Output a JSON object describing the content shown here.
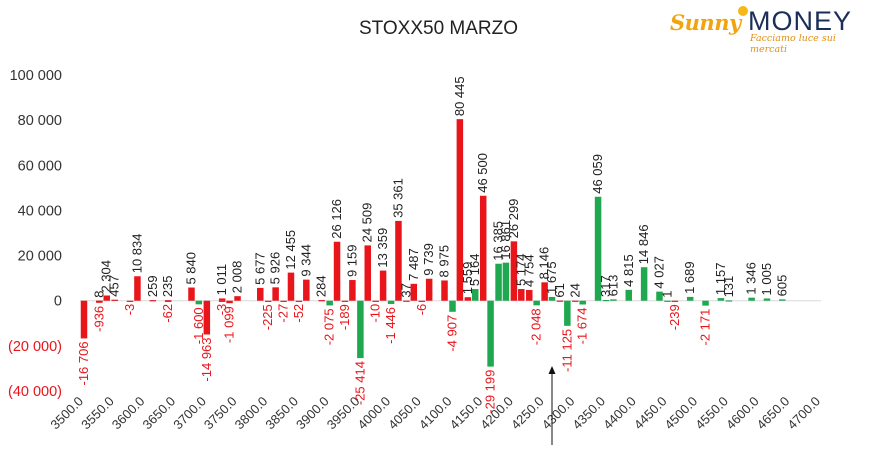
{
  "logo": {
    "brand_left": "Sunny",
    "brand_right": "MONEY",
    "tagline": "Facciamo luce sui mercati"
  },
  "colors": {
    "calls": "#e8151b",
    "puts": "#1fa84f",
    "call_labels": "#222222",
    "put_labels": "#e8151b",
    "axis_text": "#333333"
  },
  "chart_data": {
    "type": "bar",
    "title": "STOXX50 MARZO",
    "ylim": [
      -40000,
      100000
    ],
    "yticks": [
      -40000,
      -20000,
      0,
      20000,
      40000,
      60000,
      80000,
      100000
    ],
    "ytick_labels": [
      "(40 000)",
      "(20 000)",
      "0",
      "20 000",
      "40 000",
      "60 000",
      "80 000",
      "100 000"
    ],
    "xlim": [
      3500,
      4700
    ],
    "xticks": [
      3500,
      3550,
      3600,
      3650,
      3700,
      3750,
      3800,
      3850,
      3900,
      3950,
      4000,
      4050,
      4100,
      4150,
      4200,
      4250,
      4300,
      4350,
      4400,
      4450,
      4500,
      4550,
      4600,
      4650,
      4700
    ],
    "xtick_labels": [
      "3500.0",
      "3550.0",
      "3600.0",
      "3650.0",
      "3700.0",
      "3750.0",
      "3800.0",
      "3850.0",
      "3900.0",
      "3950.0",
      "4000.0",
      "4050.0",
      "4100.0",
      "4150.0",
      "4200.0",
      "4250.0",
      "4300.0",
      "4350.0",
      "4400.0",
      "4450.0",
      "4500.0",
      "4550.0",
      "4600.0",
      "4650.0",
      "4700.0"
    ],
    "bars": [
      {
        "strike": 3500,
        "color": "red",
        "value": -16706,
        "label": "-16 706"
      },
      {
        "strike": 3525,
        "color": "red",
        "value": -936,
        "label": "-936"
      },
      {
        "strike": 3525,
        "color": "red",
        "value": 8,
        "label": "8"
      },
      {
        "strike": 3537,
        "color": "red",
        "value": 2304,
        "label": "2 304"
      },
      {
        "strike": 3550,
        "color": "red",
        "value": 457,
        "label": "457"
      },
      {
        "strike": 3575,
        "color": "red",
        "value": -3,
        "label": "-3"
      },
      {
        "strike": 3587,
        "color": "red",
        "value": 10834,
        "label": "10 834"
      },
      {
        "strike": 3612,
        "color": "red",
        "value": 259,
        "label": "259"
      },
      {
        "strike": 3637,
        "color": "red",
        "value": -62,
        "label": "-62"
      },
      {
        "strike": 3637,
        "color": "red",
        "value": 235,
        "label": "235"
      },
      {
        "strike": 3675,
        "color": "red",
        "value": 5840,
        "label": "5 840"
      },
      {
        "strike": 3687,
        "color": "green",
        "value": -1600,
        "label": "-1 600"
      },
      {
        "strike": 3700,
        "color": "red",
        "value": -14963,
        "label": "-14 963"
      },
      {
        "strike": 3725,
        "color": "red",
        "value": -3,
        "label": "-3"
      },
      {
        "strike": 3725,
        "color": "red",
        "value": 1011,
        "label": "1 011"
      },
      {
        "strike": 3737,
        "color": "red",
        "value": -1099,
        "label": "-1 099"
      },
      {
        "strike": 3750,
        "color": "red",
        "value": 2008,
        "label": "2 008"
      },
      {
        "strike": 3787,
        "color": "red",
        "value": 5677,
        "label": "5 677"
      },
      {
        "strike": 3800,
        "color": "red",
        "value": -225,
        "label": "-225"
      },
      {
        "strike": 3812,
        "color": "red",
        "value": 5926,
        "label": "5 926"
      },
      {
        "strike": 3825,
        "color": "red",
        "value": -27,
        "label": "-27"
      },
      {
        "strike": 3837,
        "color": "red",
        "value": 12455,
        "label": "12 455"
      },
      {
        "strike": 3850,
        "color": "red",
        "value": -52,
        "label": "-52"
      },
      {
        "strike": 3862,
        "color": "red",
        "value": 9344,
        "label": "9 344"
      },
      {
        "strike": 3887,
        "color": "red",
        "value": 284,
        "label": "284"
      },
      {
        "strike": 3900,
        "color": "green",
        "value": -2075,
        "label": "-2 075"
      },
      {
        "strike": 3912,
        "color": "red",
        "value": 26126,
        "label": "26 126"
      },
      {
        "strike": 3925,
        "color": "red",
        "value": -189,
        "label": "-189"
      },
      {
        "strike": 3937,
        "color": "red",
        "value": 9159,
        "label": "9 159"
      },
      {
        "strike": 3950,
        "color": "green",
        "value": -25414,
        "label": "-25 414"
      },
      {
        "strike": 3962,
        "color": "red",
        "value": 24509,
        "label": "24 509"
      },
      {
        "strike": 3975,
        "color": "red",
        "value": -10,
        "label": "-10"
      },
      {
        "strike": 3987,
        "color": "red",
        "value": 13359,
        "label": "13 359"
      },
      {
        "strike": 4000,
        "color": "green",
        "value": -1446,
        "label": "-1 446"
      },
      {
        "strike": 4012,
        "color": "red",
        "value": 35361,
        "label": "35 361"
      },
      {
        "strike": 4025,
        "color": "red",
        "value": 37,
        "label": "37"
      },
      {
        "strike": 4037,
        "color": "red",
        "value": 7487,
        "label": "7 487"
      },
      {
        "strike": 4050,
        "color": "red",
        "value": -6,
        "label": "-6"
      },
      {
        "strike": 4062,
        "color": "red",
        "value": 9739,
        "label": "9 739"
      },
      {
        "strike": 4087,
        "color": "red",
        "value": 8975,
        "label": "8 975"
      },
      {
        "strike": 4100,
        "color": "green",
        "value": -4907,
        "label": "-4 907"
      },
      {
        "strike": 4112,
        "color": "red",
        "value": 80445,
        "label": "80 445"
      },
      {
        "strike": 4125,
        "color": "red",
        "value": 1559,
        "label": "1 559"
      },
      {
        "strike": 4137,
        "color": "green",
        "value": 5164,
        "label": "5 164"
      },
      {
        "strike": 4150,
        "color": "red",
        "value": 46500,
        "label": "46 500"
      },
      {
        "strike": 4162,
        "color": "green",
        "value": -29199,
        "label": "-29 199"
      },
      {
        "strike": 4175,
        "color": "green",
        "value": 16385,
        "label": "16 385"
      },
      {
        "strike": 4187,
        "color": "green",
        "value": 16861,
        "label": "16 861"
      },
      {
        "strike": 4200,
        "color": "red",
        "value": 26299,
        "label": "26 299"
      },
      {
        "strike": 4212,
        "color": "red",
        "value": 5174,
        "label": "5 174"
      },
      {
        "strike": 4225,
        "color": "red",
        "value": 4754,
        "label": "4 754"
      },
      {
        "strike": 4237,
        "color": "green",
        "value": -2048,
        "label": "-2 048"
      },
      {
        "strike": 4250,
        "color": "red",
        "value": 8146,
        "label": "8 146"
      },
      {
        "strike": 4262,
        "color": "green",
        "value": 1675,
        "label": "1 675"
      },
      {
        "strike": 4275,
        "color": "red",
        "value": 61,
        "label": "61"
      },
      {
        "strike": 4287,
        "color": "green",
        "value": -11125,
        "label": "-11 125"
      },
      {
        "strike": 4300,
        "color": "red",
        "value": 24,
        "label": "24"
      },
      {
        "strike": 4312,
        "color": "green",
        "value": -1674,
        "label": "-1 674"
      },
      {
        "strike": 4337,
        "color": "green",
        "value": 46059,
        "label": "46 059"
      },
      {
        "strike": 4350,
        "color": "green",
        "value": 317,
        "label": "317"
      },
      {
        "strike": 4362,
        "color": "green",
        "value": 613,
        "label": "613"
      },
      {
        "strike": 4387,
        "color": "green",
        "value": 4815,
        "label": "4 815"
      },
      {
        "strike": 4412,
        "color": "green",
        "value": 14846,
        "label": "14 846"
      },
      {
        "strike": 4437,
        "color": "green",
        "value": 4027,
        "label": "4 027"
      },
      {
        "strike": 4450,
        "color": "green",
        "value": 1,
        "label": "1"
      },
      {
        "strike": 4462,
        "color": "red",
        "value": -239,
        "label": "-239"
      },
      {
        "strike": 4487,
        "color": "green",
        "value": 1689,
        "label": "1 689"
      },
      {
        "strike": 4512,
        "color": "green",
        "value": -2171,
        "label": "-2 171"
      },
      {
        "strike": 4537,
        "color": "green",
        "value": 1157,
        "label": "1 157"
      },
      {
        "strike": 4550,
        "color": "green",
        "value": 131,
        "label": "131"
      },
      {
        "strike": 4587,
        "color": "green",
        "value": 1346,
        "label": "1 346"
      },
      {
        "strike": 4612,
        "color": "green",
        "value": 1005,
        "label": "1 005"
      },
      {
        "strike": 4637,
        "color": "green",
        "value": 605,
        "label": "605"
      }
    ],
    "marker": {
      "type": "arrow",
      "strike": 4262
    }
  }
}
